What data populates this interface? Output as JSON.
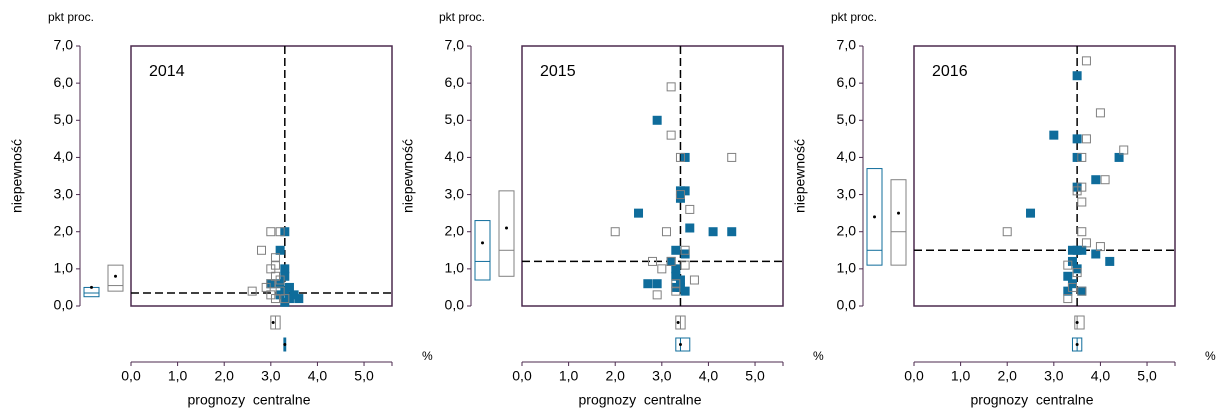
{
  "chart_data": [
    {
      "type": "scatter",
      "title": "2014",
      "yunit": "pkt proc.",
      "ylabel": "niepewność",
      "xlabel": "prognozy  centralne",
      "xunit": "%",
      "xlim": [
        0,
        5.6
      ],
      "ylim": [
        0,
        7
      ],
      "xticks": [
        {
          "value": 0,
          "label": "0,0"
        },
        {
          "value": 1,
          "label": "1,0"
        },
        {
          "value": 2,
          "label": "2,0"
        },
        {
          "value": 3,
          "label": "3,0"
        },
        {
          "value": 4,
          "label": "4,0"
        },
        {
          "value": 5,
          "label": "5,0"
        }
      ],
      "yticks": [
        {
          "value": 0,
          "label": "0,0"
        },
        {
          "value": 1,
          "label": "1,0"
        },
        {
          "value": 2,
          "label": "2,0"
        },
        {
          "value": 3,
          "label": "3,0"
        },
        {
          "value": 4,
          "label": "4,0"
        },
        {
          "value": 5,
          "label": "5,0"
        },
        {
          "value": 6,
          "label": "6,0"
        },
        {
          "value": 7,
          "label": "7,0"
        }
      ],
      "vline": 3.3,
      "hline": 0.35,
      "series": [
        {
          "color": "#0f6c9b",
          "marker": "filled",
          "x": [
            3.3,
            3.2,
            3.3,
            3.3,
            3.2,
            3.4,
            3.3,
            3.5,
            3.6,
            3.4,
            3.3,
            3.0,
            3.2
          ],
          "y": [
            2.0,
            1.5,
            1.0,
            0.8,
            0.6,
            0.5,
            0.4,
            0.3,
            0.2,
            0.2,
            0.1,
            0.6,
            0.3
          ],
          "uncertainty_box": {
            "q1": 0.25,
            "median": 0.35,
            "q3": 0.5,
            "mean": 0.5
          },
          "central_box": {
            "q1": 3.28,
            "median": 3.3,
            "q3": 3.32,
            "mean": 3.3
          }
        },
        {
          "color": "#808080",
          "marker": "hollow",
          "x": [
            3.0,
            3.2,
            2.8,
            3.1,
            3.1,
            3.0,
            3.1,
            3.2,
            3.0,
            2.9,
            2.6,
            3.0,
            3.1,
            3.2,
            3.3
          ],
          "y": [
            2.0,
            2.0,
            1.5,
            1.3,
            1.1,
            1.0,
            0.8,
            0.7,
            0.6,
            0.5,
            0.4,
            0.3,
            0.2,
            0.4,
            0.2
          ],
          "uncertainty_box": {
            "q1": 0.4,
            "median": 0.55,
            "q3": 1.1,
            "mean": 0.8
          },
          "central_box": {
            "q1": 3.0,
            "median": 3.1,
            "q3": 3.2,
            "mean": 3.05
          }
        }
      ]
    },
    {
      "type": "scatter",
      "title": "2015",
      "yunit": "pkt proc.",
      "ylabel": "niepewność",
      "xlabel": "prognozy  centralne",
      "xunit": "%",
      "xlim": [
        0,
        5.6
      ],
      "ylim": [
        0,
        7
      ],
      "xticks": [
        {
          "value": 0,
          "label": "0,0"
        },
        {
          "value": 1,
          "label": "1,0"
        },
        {
          "value": 2,
          "label": "2,0"
        },
        {
          "value": 3,
          "label": "3,0"
        },
        {
          "value": 4,
          "label": "4,0"
        },
        {
          "value": 5,
          "label": "5,0"
        }
      ],
      "yticks": [
        {
          "value": 0,
          "label": "0,0"
        },
        {
          "value": 1,
          "label": "1,0"
        },
        {
          "value": 2,
          "label": "2,0"
        },
        {
          "value": 3,
          "label": "3,0"
        },
        {
          "value": 4,
          "label": "4,0"
        },
        {
          "value": 5,
          "label": "5,0"
        },
        {
          "value": 6,
          "label": "6,0"
        },
        {
          "value": 7,
          "label": "7,0"
        }
      ],
      "vline": 3.4,
      "hline": 1.2,
      "series": [
        {
          "color": "#0f6c9b",
          "marker": "filled",
          "x": [
            2.9,
            2.5,
            3.5,
            3.4,
            3.5,
            3.4,
            4.1,
            4.5,
            3.6,
            3.3,
            3.5,
            3.2,
            3.3,
            3.3,
            3.4,
            2.7,
            2.9,
            3.4,
            3.5,
            3.3
          ],
          "y": [
            5.0,
            2.5,
            4.0,
            3.1,
            3.1,
            2.9,
            2.0,
            2.0,
            2.1,
            1.5,
            1.4,
            1.2,
            1.0,
            0.8,
            0.7,
            0.6,
            0.6,
            0.5,
            0.4,
            0.5
          ],
          "uncertainty_box": {
            "q1": 0.7,
            "median": 1.2,
            "q3": 2.3,
            "mean": 1.7
          },
          "central_box": {
            "q1": 3.3,
            "median": 3.4,
            "q3": 3.6,
            "mean": 3.4
          }
        },
        {
          "color": "#808080",
          "marker": "hollow",
          "x": [
            3.2,
            3.2,
            3.4,
            4.5,
            3.4,
            3.6,
            2.0,
            3.1,
            3.5,
            2.8,
            3.2,
            3.5,
            3.0,
            3.7,
            3.3,
            2.9,
            3.3
          ],
          "y": [
            5.9,
            4.6,
            4.0,
            4.0,
            3.0,
            2.6,
            2.0,
            2.0,
            1.5,
            1.2,
            1.2,
            1.1,
            1.0,
            0.7,
            0.6,
            0.3,
            0.4
          ],
          "uncertainty_box": {
            "q1": 0.8,
            "median": 1.5,
            "q3": 3.1,
            "mean": 2.1
          },
          "central_box": {
            "q1": 3.3,
            "median": 3.4,
            "q3": 3.5,
            "mean": 3.35
          }
        }
      ]
    },
    {
      "type": "scatter",
      "title": "2016",
      "yunit": "pkt proc.",
      "ylabel": "niepewność",
      "xlabel": "prognozy  centralne",
      "xunit": "%",
      "xlim": [
        0,
        5.6
      ],
      "ylim": [
        0,
        7
      ],
      "xticks": [
        {
          "value": 0,
          "label": "0,0"
        },
        {
          "value": 1,
          "label": "1,0"
        },
        {
          "value": 2,
          "label": "2,0"
        },
        {
          "value": 3,
          "label": "3,0"
        },
        {
          "value": 4,
          "label": "4,0"
        },
        {
          "value": 5,
          "label": "5,0"
        }
      ],
      "yticks": [
        {
          "value": 0,
          "label": "0,0"
        },
        {
          "value": 1,
          "label": "1,0"
        },
        {
          "value": 2,
          "label": "2,0"
        },
        {
          "value": 3,
          "label": "3,0"
        },
        {
          "value": 4,
          "label": "4,0"
        },
        {
          "value": 5,
          "label": "5,0"
        },
        {
          "value": 6,
          "label": "6,0"
        },
        {
          "value": 7,
          "label": "7,0"
        }
      ],
      "vline": 3.5,
      "hline": 1.5,
      "series": [
        {
          "color": "#0f6c9b",
          "marker": "filled",
          "x": [
            3.5,
            3.0,
            3.5,
            4.4,
            3.5,
            3.9,
            3.5,
            2.5,
            3.5,
            3.9,
            4.2,
            3.6,
            3.4,
            3.3,
            3.5,
            3.4,
            3.3,
            3.6,
            3.4
          ],
          "y": [
            6.2,
            4.6,
            4.5,
            4.0,
            4.0,
            3.4,
            3.2,
            2.5,
            1.5,
            1.4,
            1.2,
            1.5,
            1.5,
            0.8,
            1.0,
            0.6,
            0.4,
            0.4,
            1.2
          ],
          "uncertainty_box": {
            "q1": 1.1,
            "median": 1.5,
            "q3": 3.7,
            "mean": 2.4
          },
          "central_box": {
            "q1": 3.4,
            "median": 3.5,
            "q3": 3.6,
            "mean": 3.5
          }
        },
        {
          "color": "#808080",
          "marker": "hollow",
          "x": [
            3.7,
            4.0,
            3.7,
            4.5,
            3.6,
            4.1,
            3.6,
            3.5,
            3.6,
            2.0,
            3.6,
            4.0,
            3.7,
            3.3,
            3.5,
            3.4,
            3.3,
            3.6
          ],
          "y": [
            6.6,
            5.2,
            4.5,
            4.2,
            4.0,
            3.4,
            3.2,
            3.1,
            2.8,
            2.0,
            2.0,
            1.6,
            1.7,
            1.1,
            0.9,
            0.5,
            0.2,
            0.4
          ],
          "uncertainty_box": {
            "q1": 1.1,
            "median": 2.0,
            "q3": 3.4,
            "mean": 2.5
          },
          "central_box": {
            "q1": 3.45,
            "median": 3.5,
            "q3": 3.65,
            "mean": 3.5
          }
        }
      ]
    }
  ]
}
